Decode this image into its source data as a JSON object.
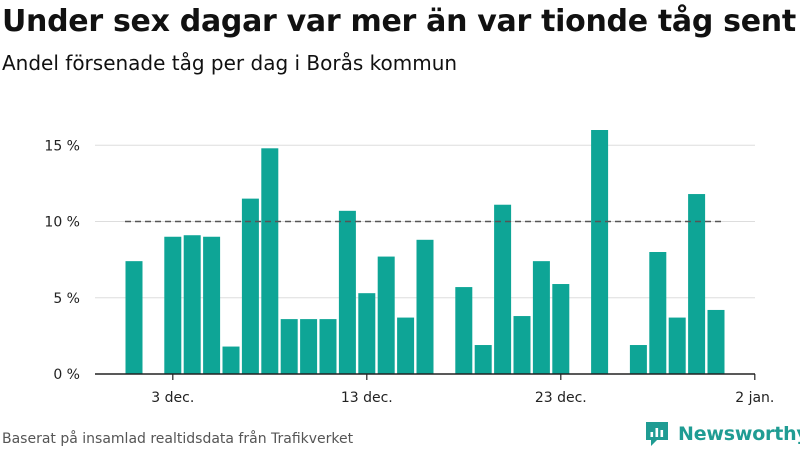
{
  "header": {
    "title": "Under sex dagar var mer än var tionde tåg sent",
    "subtitle": "Andel försenade tåg per dag i Borås kommun"
  },
  "footer": {
    "source": "Baserat på insamlad realtidsdata från Trafikverket",
    "brand": "Newsworthy"
  },
  "colors": {
    "bar": "#0ea596",
    "reference_line": "#555555",
    "grid": "#dddddd",
    "axis": "#222222",
    "brand": "#1f9c93"
  },
  "icons": {
    "brand_logo": "newsworthy-logo-icon"
  },
  "chart_data": {
    "type": "bar",
    "title": "Under sex dagar var mer än var tionde tåg sent",
    "subtitle": "Andel försenade tåg per dag i Borås kommun",
    "xlabel": "",
    "ylabel": "",
    "x": [
      "2019-12-01",
      "2019-12-02",
      "2019-12-03",
      "2019-12-04",
      "2019-12-05",
      "2019-12-06",
      "2019-12-07",
      "2019-12-08",
      "2019-12-09",
      "2019-12-10",
      "2019-12-11",
      "2019-12-12",
      "2019-12-13",
      "2019-12-14",
      "2019-12-15",
      "2019-12-16",
      "2019-12-17",
      "2019-12-18",
      "2019-12-19",
      "2019-12-20",
      "2019-12-21",
      "2019-12-22",
      "2019-12-23",
      "2019-12-24",
      "2019-12-25",
      "2019-12-26",
      "2019-12-27",
      "2019-12-28",
      "2019-12-29",
      "2019-12-30",
      "2019-12-31"
    ],
    "values": [
      7.4,
      0,
      9.0,
      9.1,
      9.0,
      1.8,
      11.5,
      14.8,
      3.6,
      3.6,
      3.6,
      10.7,
      5.3,
      7.7,
      3.7,
      8.8,
      0,
      5.7,
      1.9,
      11.1,
      3.8,
      7.4,
      5.9,
      0,
      16.0,
      0,
      1.9,
      8.0,
      3.7,
      11.8,
      4.2
    ],
    "ylim": [
      0,
      16
    ],
    "y_ticks": [
      0,
      5,
      10,
      15
    ],
    "y_tick_labels": [
      "0 %",
      "5 %",
      "10 %",
      "15 %"
    ],
    "x_ticks": [
      "2019-12-03",
      "2019-12-13",
      "2019-12-23",
      "2020-01-02"
    ],
    "x_tick_labels": [
      "3 dec.",
      "13 dec.",
      "23 dec.",
      "2 jan."
    ],
    "reference_line": 10,
    "grid": true,
    "legend": "none"
  }
}
